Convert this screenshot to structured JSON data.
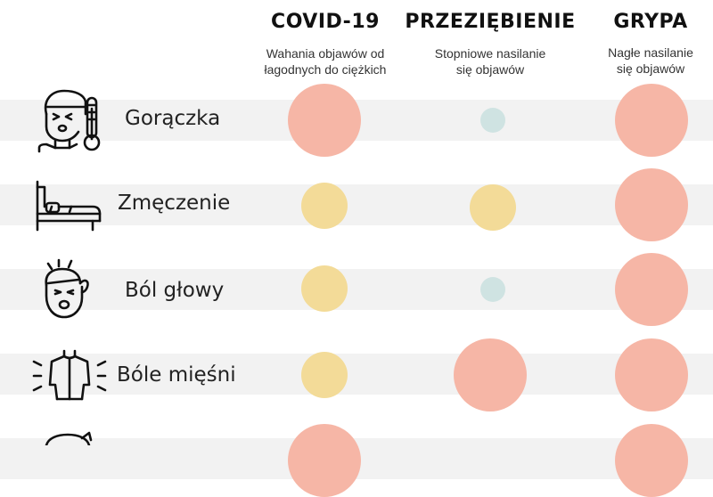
{
  "colors": {
    "red": "#f6b6a6",
    "yellow": "#f3db98",
    "teal": "#cfe3e2",
    "band": "#f2f2f2"
  },
  "columns": [
    {
      "id": "covid",
      "title": "COVID-19",
      "subtitle_1": "Wahania objawów od",
      "subtitle_2": "łagodnych do ciężkich"
    },
    {
      "id": "cold",
      "title": "PRZEZIĘBIENIE",
      "subtitle_1": "Stopniowe nasilanie",
      "subtitle_2": "się objawów"
    },
    {
      "id": "flu",
      "title": "GRYPA",
      "subtitle_1": "Nagłe nasilanie",
      "subtitle_2": "się objawów"
    }
  ],
  "rows": [
    {
      "label": "Gorączka",
      "icon": "fever-person-thermometer-icon",
      "covid": "large-red",
      "cold": "small-teal",
      "flu": "large-red"
    },
    {
      "label": "Zmęczenie",
      "icon": "bed-icon",
      "covid": "medium-yellow",
      "cold": "medium-yellow",
      "flu": "large-red"
    },
    {
      "label": "Ból głowy",
      "icon": "headache-face-icon",
      "covid": "medium-yellow",
      "cold": "small-teal",
      "flu": "large-red"
    },
    {
      "label": "Bóle mięśni",
      "icon": "muscle-pain-back-icon",
      "covid": "medium-yellow",
      "cold": "large-red",
      "flu": "large-red"
    },
    {
      "label": "",
      "icon": "partial-face-icon",
      "covid": "large-red",
      "cold": "",
      "flu": "large-red"
    }
  ]
}
